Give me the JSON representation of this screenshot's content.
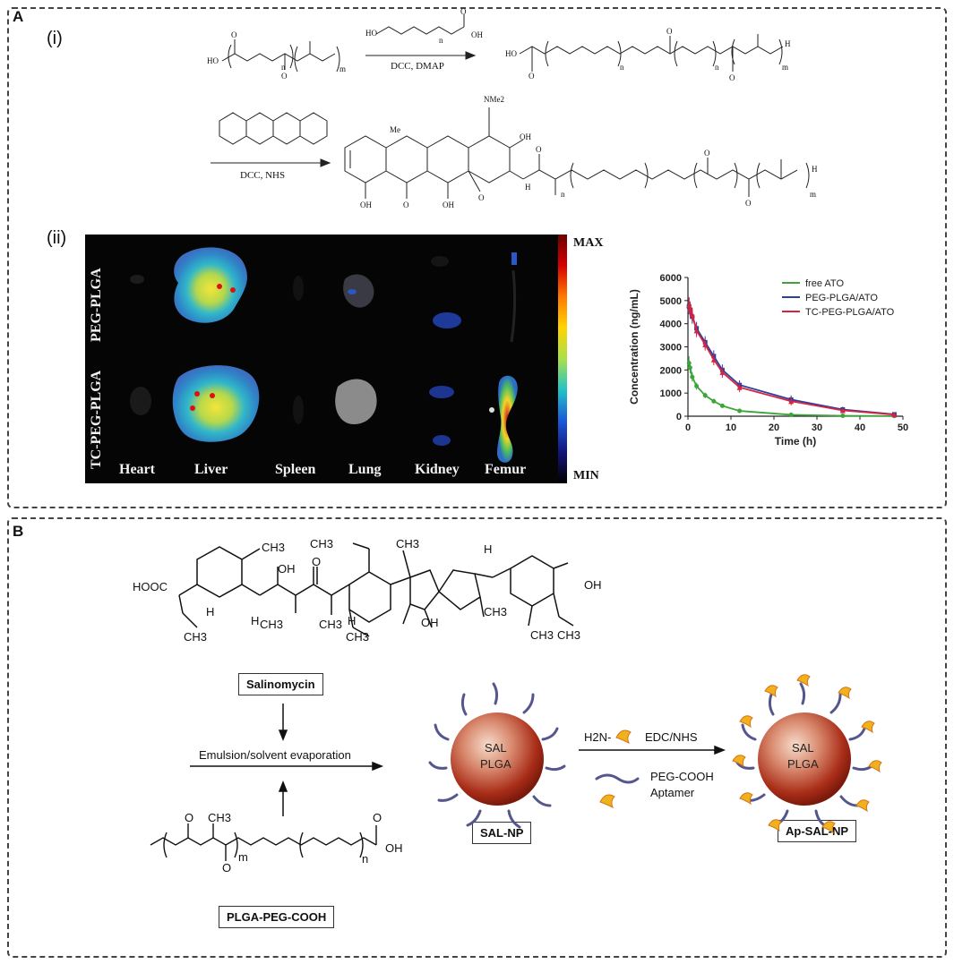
{
  "panel_a": {
    "label": "A",
    "sub_i": "(i)",
    "sub_ii": "(ii)",
    "step1_reagents": "DCC, DMAP",
    "step2_reagents": "DCC, NHS",
    "chem": {
      "ho": "HO",
      "oh": "OH",
      "o": "O",
      "n": "n",
      "m": "m",
      "h": "H",
      "me": "Me",
      "nme2": "NMe2"
    },
    "imaging": {
      "row1": "PEG-PLGA",
      "row2": "TC-PEG-PLGA",
      "organs": [
        "Heart",
        "Liver",
        "Spleen",
        "Lung",
        "Kidney",
        "Femur"
      ],
      "colorbar_max": "MAX",
      "colorbar_min": "MIN"
    }
  },
  "panel_b": {
    "label": "B",
    "salinomycin_label": "Salinomycin",
    "emulsion_label": "Emulsion/solvent evaporation",
    "plga_peg_label": "PLGA-PEG-COOH",
    "sal_np_label": "SAL-NP",
    "ap_sal_np_label": "Ap-SAL-NP",
    "particle_text_1": "SAL",
    "particle_text_2": "PLGA",
    "reagent_h2n": "H2N-",
    "reagent_edc": "EDC/NHS",
    "legend_peg": "PEG-COOH",
    "legend_aptamer": "Aptamer",
    "chem": {
      "hooc": "HOOC",
      "ch3": "CH3",
      "oh": "OH",
      "o": "O",
      "h": "H",
      "m": "m",
      "n": "n"
    }
  },
  "chart_data": {
    "type": "line",
    "xlabel": "Time (h)",
    "ylabel": "Concentration (ng/mL)",
    "xlim": [
      0,
      50
    ],
    "ylim": [
      0,
      6000
    ],
    "xticks": [
      0,
      10,
      20,
      30,
      40,
      50
    ],
    "yticks": [
      0,
      1000,
      2000,
      3000,
      4000,
      5000,
      6000
    ],
    "legend_position": "top-right",
    "series": [
      {
        "name": "free ATO",
        "color": "#3aa63a",
        "x": [
          0.25,
          0.5,
          1,
          2,
          4,
          6,
          8,
          12,
          24,
          36,
          48
        ],
        "y": [
          2300,
          2100,
          1700,
          1300,
          900,
          650,
          450,
          230,
          60,
          20,
          10
        ],
        "err": [
          300,
          250,
          200,
          150,
          120,
          100,
          80,
          60,
          30,
          20,
          10
        ]
      },
      {
        "name": "PEG-PLGA/ATO",
        "color": "#2b3f9e",
        "x": [
          0.25,
          0.5,
          1,
          2,
          4,
          6,
          8,
          12,
          24,
          36,
          48
        ],
        "y": [
          4750,
          4600,
          4300,
          3800,
          3200,
          2600,
          2000,
          1350,
          720,
          290,
          80
        ],
        "err": [
          350,
          320,
          300,
          280,
          260,
          250,
          240,
          200,
          180,
          120,
          50
        ]
      },
      {
        "name": "TC-PEG-PLGA/ATO",
        "color": "#d6233f",
        "x": [
          0.25,
          0.5,
          1,
          2,
          4,
          6,
          8,
          12,
          24,
          36,
          48
        ],
        "y": [
          4800,
          4650,
          4400,
          3700,
          3100,
          2450,
          1900,
          1250,
          650,
          250,
          70
        ],
        "err": [
          350,
          320,
          300,
          280,
          260,
          250,
          240,
          200,
          180,
          120,
          50
        ]
      }
    ]
  }
}
